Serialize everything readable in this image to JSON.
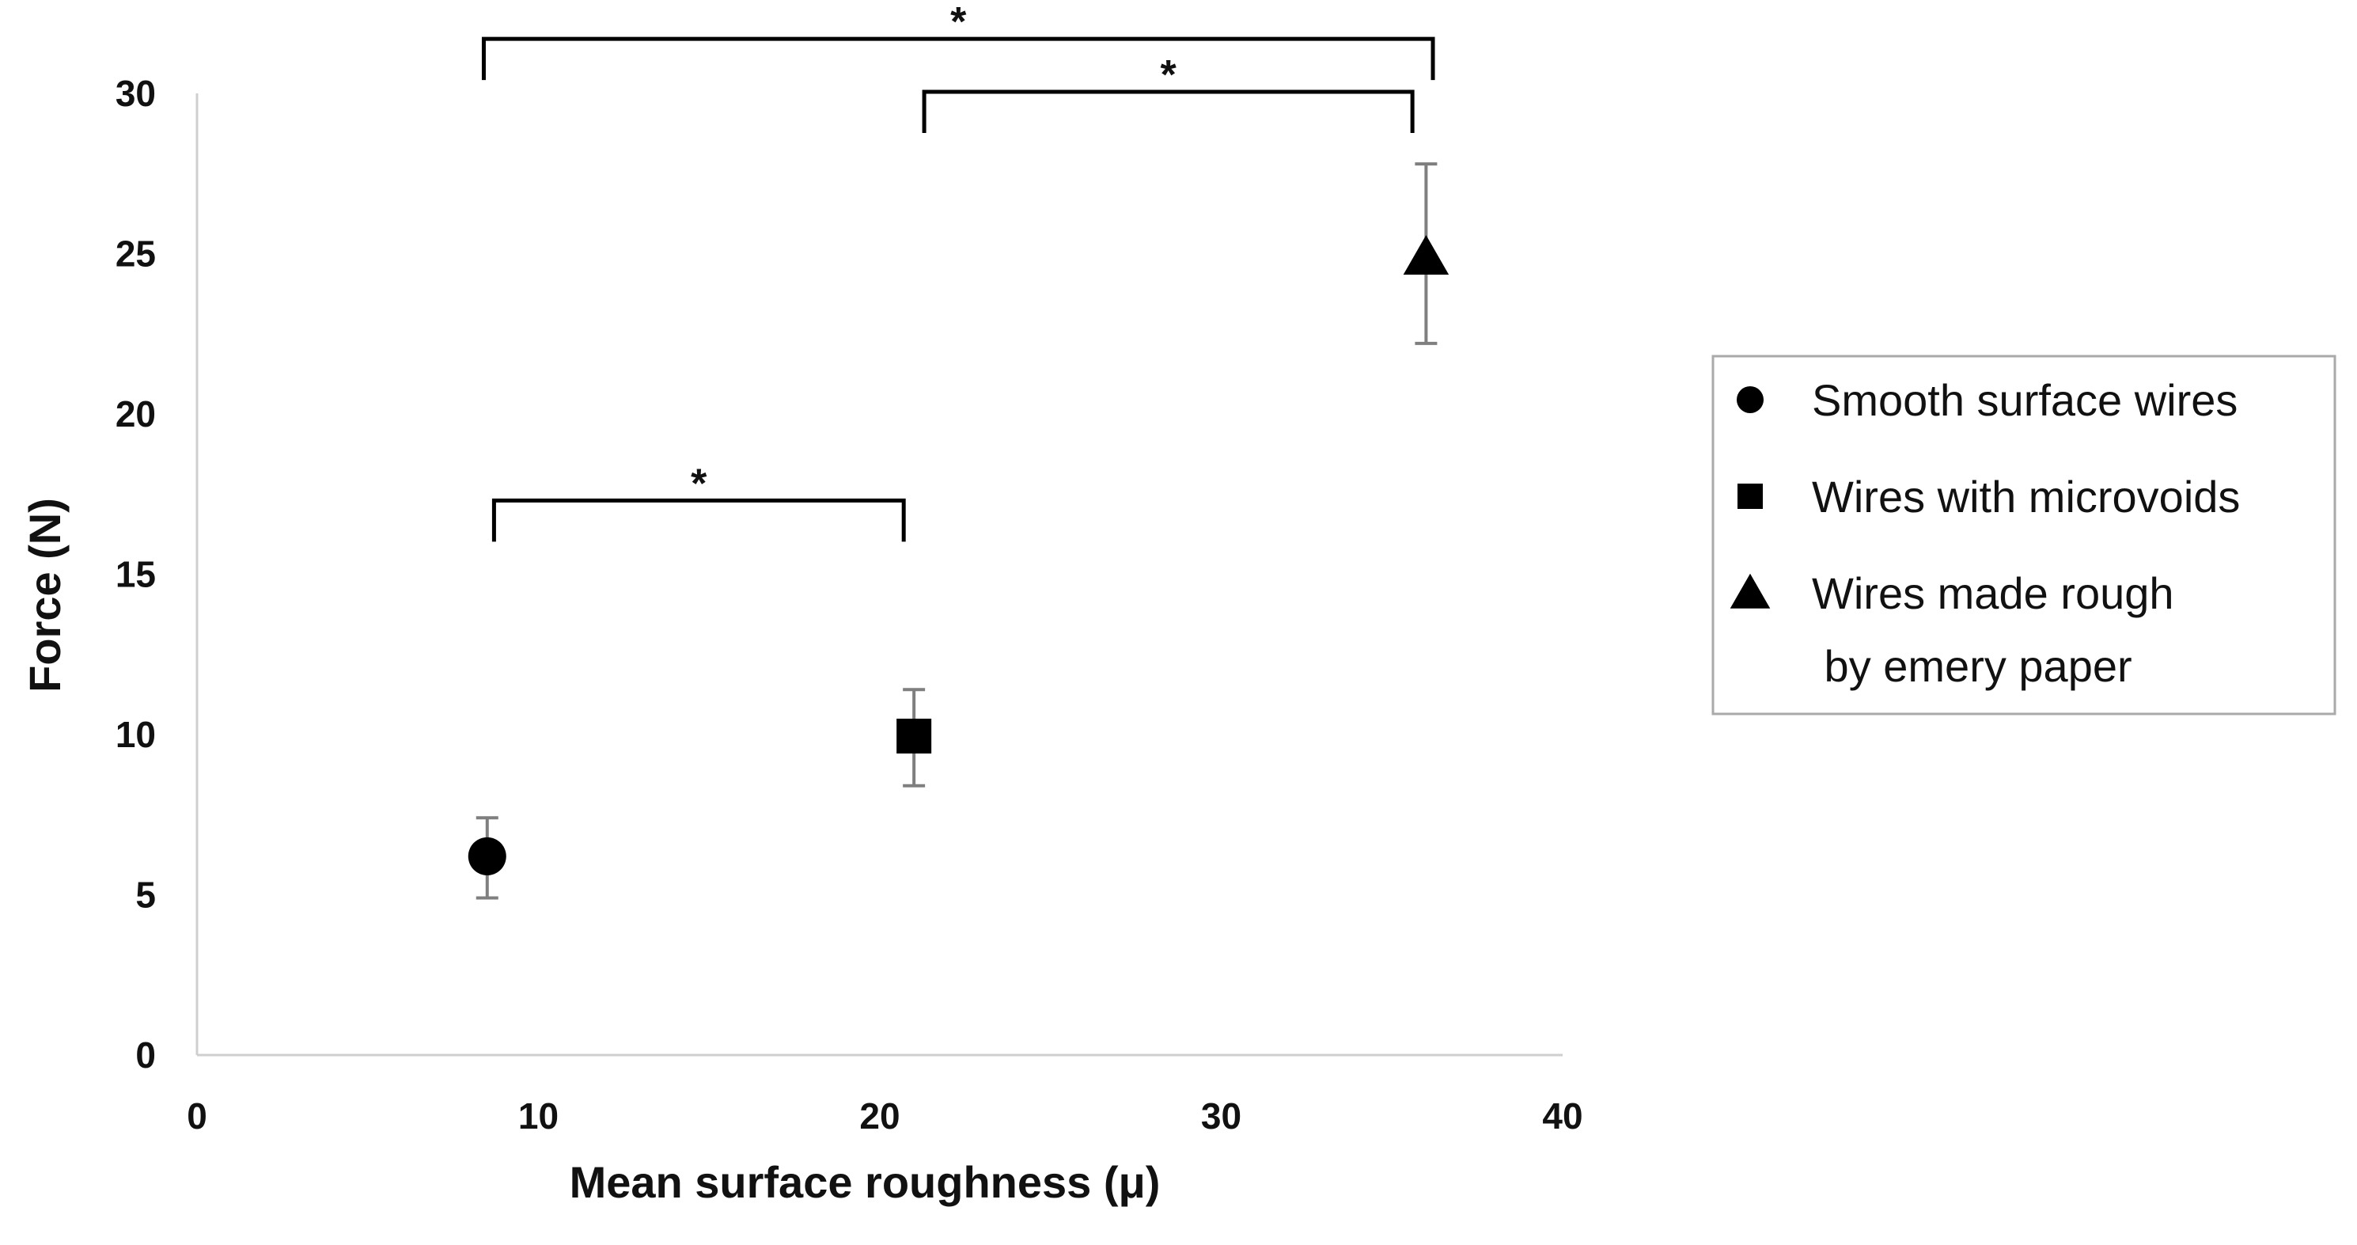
{
  "chart_data": {
    "type": "scatter",
    "title": "",
    "xlabel": "Mean surface roughness (μ)",
    "ylabel": "Force (N)",
    "xlim": [
      0,
      40
    ],
    "ylim": [
      0,
      30
    ],
    "x_ticks": [
      "0",
      "10",
      "20",
      "30",
      "40"
    ],
    "y_ticks": [
      "0",
      "5",
      "10",
      "15",
      "20",
      "25",
      "30"
    ],
    "x_tick_values": [
      0,
      10,
      20,
      30,
      40
    ],
    "y_tick_values": [
      0,
      5,
      10,
      15,
      20,
      25,
      30
    ],
    "grid": false,
    "legend_position": "right",
    "series": [
      {
        "name": "Smooth surface wires",
        "legend_lines": [
          "Smooth surface wires"
        ],
        "marker": "circle",
        "x": 8.5,
        "y": 6.2,
        "y_err_low": 4.9,
        "y_err_high": 7.4
      },
      {
        "name": "Wires with microvoids",
        "legend_lines": [
          "Wires with microvoids"
        ],
        "marker": "square",
        "x": 21,
        "y": 9.95,
        "y_err_low": 8.4,
        "y_err_high": 11.4
      },
      {
        "name": "Wires made rough by emery paper",
        "legend_lines": [
          "Wires made rough",
          " by emery paper"
        ],
        "marker": "triangle",
        "x": 36,
        "y": 24.9,
        "y_err_low": 22.2,
        "y_err_high": 27.8
      }
    ],
    "significance_brackets": [
      {
        "x1": 8.7,
        "x2": 20.7,
        "y": 17.3,
        "label": "*"
      },
      {
        "x1": 21.3,
        "x2": 35.6,
        "y": 30.05,
        "label": "*"
      },
      {
        "x1": 8.4,
        "x2": 36.2,
        "y": 31.7,
        "label": "*"
      }
    ],
    "colors": {
      "marker": "#000000",
      "error_bar": "#7f7f7f",
      "axis": "#cfcfcf",
      "legend_border": "#aaaaaa",
      "text": "#111111"
    }
  }
}
